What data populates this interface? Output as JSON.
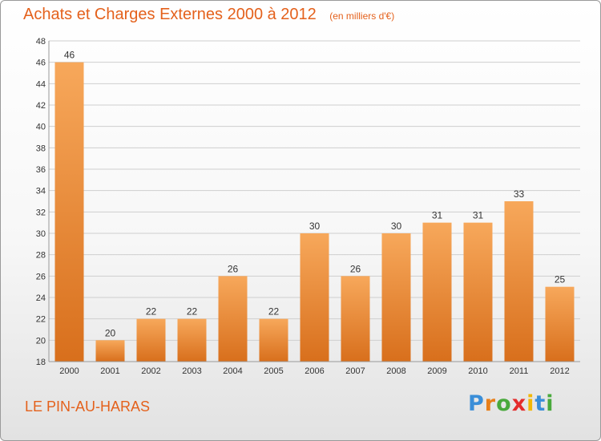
{
  "title": "Achats et Charges Externes 2000 à 2012",
  "subtitle": "(en milliers d'€)",
  "town": "LE PIN-AU-HARAS",
  "brand": {
    "letters": [
      "P",
      "r",
      "o",
      "x",
      "i",
      "t",
      "i"
    ],
    "colors": [
      "#3a8ed8",
      "#e87f1a",
      "#49a93c",
      "#e42c2c",
      "#f2b705",
      "#3a8ed8",
      "#49a93c"
    ]
  },
  "colors": {
    "accent": "#e4611c",
    "bar_top": "#f7a85b",
    "bar_bottom": "#d86f1c",
    "grid": "#cfcfcf",
    "axis_text": "#333333"
  },
  "chart_data": {
    "type": "bar",
    "categories": [
      "2000",
      "2001",
      "2002",
      "2003",
      "2004",
      "2005",
      "2006",
      "2007",
      "2008",
      "2009",
      "2010",
      "2011",
      "2012"
    ],
    "values": [
      46,
      20,
      22,
      22,
      26,
      22,
      30,
      26,
      30,
      31,
      31,
      33,
      25
    ],
    "data_labels": [
      "46",
      "20",
      "22",
      "22",
      "26",
      "22",
      "30",
      "26",
      "30",
      "31",
      "31",
      "33",
      "25"
    ],
    "title": "Achats et Charges Externes 2000 à 2012",
    "subtitle": "(en milliers d'€)",
    "xlabel": "",
    "ylabel": "",
    "ylim": [
      18,
      48
    ],
    "yticks": [
      18,
      20,
      22,
      24,
      26,
      28,
      30,
      32,
      34,
      36,
      38,
      40,
      42,
      44,
      46,
      48
    ],
    "grid": true
  }
}
